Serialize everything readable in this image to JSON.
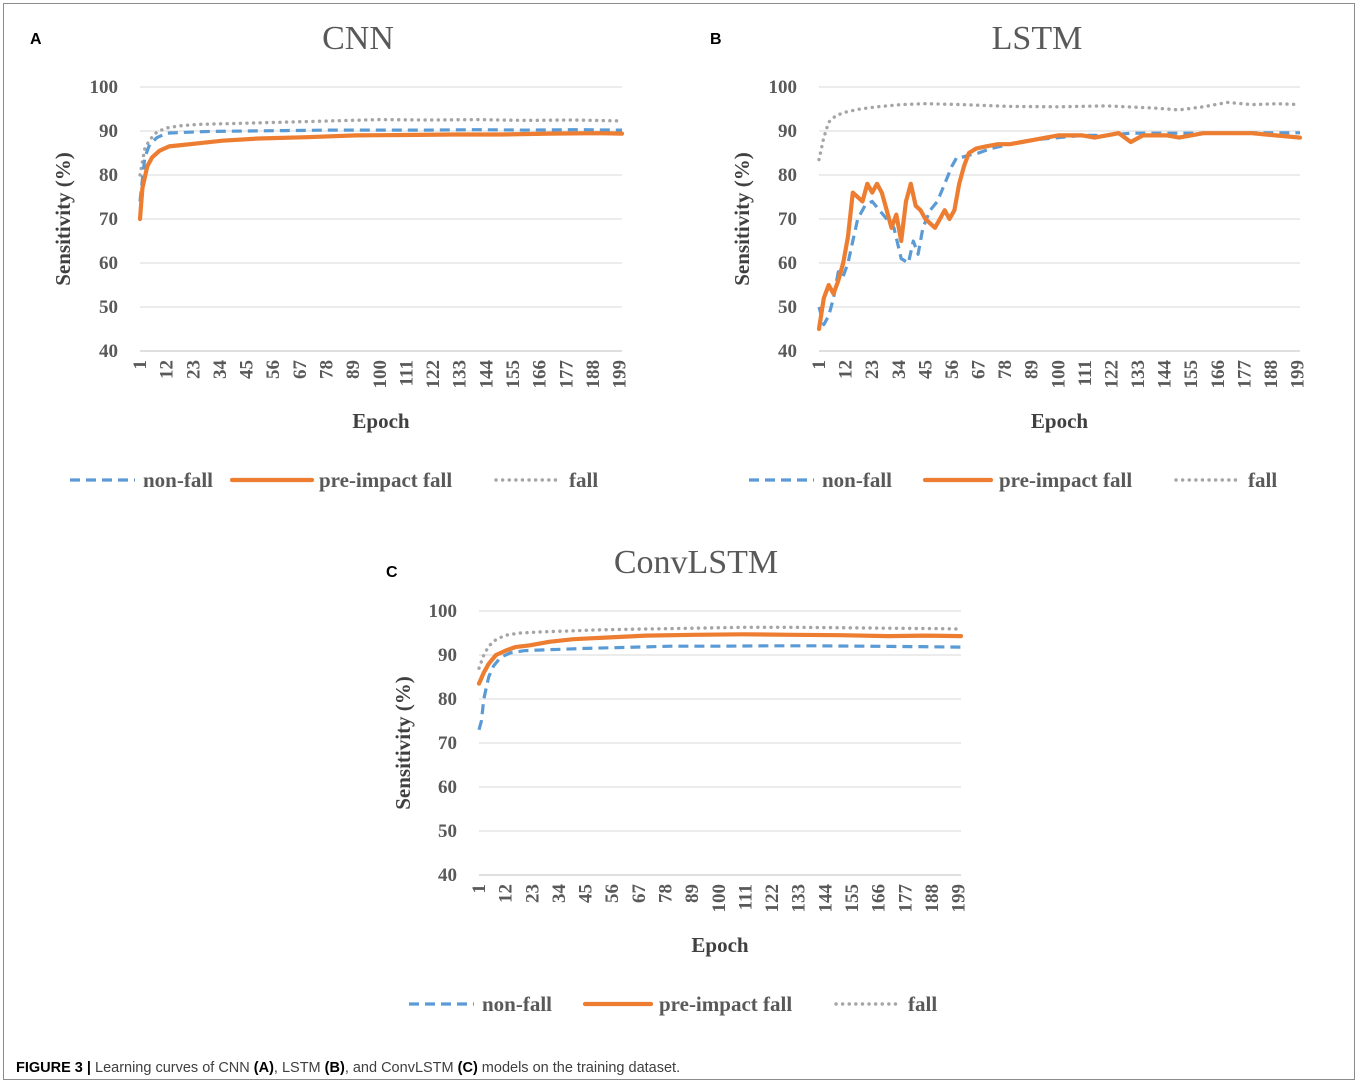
{
  "figure": {
    "caption_label": "FIGURE 3 |",
    "caption_parts": [
      "Learning curves of CNN ",
      "(A)",
      ", LSTM ",
      "(B)",
      ", and ConvLSTM ",
      "(C)",
      " models on the training dataset."
    ]
  },
  "colors": {
    "non_fall": "#5b9bd5",
    "pre_impact_fall": "#ed7d31",
    "fall": "#a5a5a5"
  },
  "chart_data": [
    {
      "panel": "A",
      "type": "line",
      "title": "CNN",
      "xlabel": "Epoch",
      "ylabel": "Sensitivity (%)",
      "ylim": [
        40,
        100
      ],
      "yticks": [
        100,
        90,
        80,
        70,
        60,
        50,
        40
      ],
      "xlim": [
        1,
        200
      ],
      "xticks": [
        1,
        12,
        23,
        34,
        45,
        56,
        67,
        78,
        89,
        100,
        111,
        122,
        133,
        144,
        155,
        166,
        177,
        188,
        199
      ],
      "grid": true,
      "legend": "bottom",
      "series": [
        {
          "name": "non-fall",
          "style": "dashed",
          "x": [
            1,
            3,
            5,
            8,
            12,
            20,
            30,
            45,
            60,
            80,
            100,
            120,
            140,
            160,
            180,
            200
          ],
          "y": [
            74,
            84,
            87,
            88.5,
            89.5,
            89.7,
            89.9,
            90,
            90.1,
            90.2,
            90.2,
            90.2,
            90.3,
            90.2,
            90.3,
            90.2
          ]
        },
        {
          "name": "pre-impact fall",
          "style": "solid",
          "x": [
            1,
            2,
            4,
            6,
            9,
            13,
            18,
            25,
            35,
            50,
            70,
            90,
            110,
            130,
            150,
            170,
            190,
            200
          ],
          "y": [
            70,
            77,
            82,
            84,
            85.5,
            86.5,
            86.8,
            87.2,
            87.8,
            88.3,
            88.6,
            89,
            89.1,
            89.2,
            89.2,
            89.4,
            89.5,
            89.4
          ]
        },
        {
          "name": "fall",
          "style": "dotted",
          "x": [
            1,
            3,
            5,
            8,
            12,
            18,
            25,
            40,
            60,
            80,
            100,
            120,
            140,
            160,
            180,
            200
          ],
          "y": [
            80,
            86,
            88,
            89.8,
            90.7,
            91.2,
            91.5,
            91.7,
            92,
            92.3,
            92.6,
            92.5,
            92.6,
            92.4,
            92.5,
            92.3
          ]
        }
      ]
    },
    {
      "panel": "B",
      "type": "line",
      "title": "LSTM",
      "xlabel": "Epoch",
      "ylabel": "Sensitivity (%)",
      "ylim": [
        40,
        100
      ],
      "yticks": [
        100,
        90,
        80,
        70,
        60,
        50,
        40
      ],
      "xlim": [
        1,
        200
      ],
      "xticks": [
        1,
        12,
        23,
        34,
        45,
        56,
        67,
        78,
        89,
        100,
        111,
        122,
        133,
        144,
        155,
        166,
        177,
        188,
        199
      ],
      "grid": true,
      "legend": "bottom",
      "series": [
        {
          "name": "non-fall",
          "style": "dashed",
          "x": [
            1,
            3,
            5,
            7,
            9,
            11,
            13,
            15,
            17,
            20,
            23,
            26,
            29,
            32,
            35,
            38,
            40,
            42,
            44,
            47,
            50,
            53,
            56,
            58,
            60,
            63,
            67,
            72,
            80,
            90,
            100,
            110,
            120,
            130,
            140,
            150,
            160,
            170,
            180,
            190,
            200
          ],
          "y": [
            50,
            46,
            48,
            52,
            58,
            57,
            60,
            65,
            70,
            73,
            74,
            72,
            70,
            68,
            61,
            60,
            65,
            62,
            68,
            72,
            74,
            78,
            82,
            84,
            84,
            84.5,
            85,
            86,
            87,
            88,
            88.5,
            89,
            89,
            89.5,
            89.5,
            89.5,
            89.5,
            89.5,
            89.6,
            89.6,
            89.6
          ]
        },
        {
          "name": "pre-impact fall",
          "style": "solid",
          "x": [
            1,
            3,
            5,
            7,
            9,
            11,
            13,
            15,
            17,
            19,
            21,
            23,
            25,
            27,
            29,
            31,
            33,
            35,
            37,
            39,
            41,
            43,
            45,
            47,
            49,
            51,
            53,
            55,
            57,
            59,
            61,
            63,
            66,
            70,
            75,
            80,
            85,
            90,
            95,
            100,
            105,
            110,
            115,
            120,
            125,
            130,
            135,
            140,
            145,
            150,
            160,
            170,
            180,
            190,
            200
          ],
          "y": [
            45,
            52,
            55,
            53,
            56,
            60,
            66,
            76,
            75,
            74,
            78,
            76,
            78,
            76,
            72,
            68,
            71,
            65,
            74,
            78,
            73,
            72,
            70,
            69,
            68,
            70,
            72,
            70,
            72,
            78,
            82,
            85,
            86,
            86.5,
            87,
            87,
            87.5,
            88,
            88.5,
            89,
            89,
            89,
            88.5,
            89,
            89.5,
            87.5,
            89,
            89,
            89,
            88.5,
            89.5,
            89.5,
            89.5,
            89,
            88.5
          ]
        },
        {
          "name": "fall",
          "style": "dotted",
          "x": [
            1,
            3,
            5,
            8,
            12,
            18,
            25,
            35,
            45,
            60,
            80,
            100,
            120,
            140,
            150,
            160,
            170,
            180,
            190,
            200
          ],
          "y": [
            83.5,
            88.5,
            92,
            93.5,
            94.3,
            95,
            95.5,
            96,
            96.2,
            96,
            95.6,
            95.5,
            95.7,
            95.2,
            94.8,
            95.5,
            96.5,
            96,
            96.2,
            96
          ]
        }
      ]
    },
    {
      "panel": "C",
      "type": "line",
      "title": "ConvLSTM",
      "xlabel": "Epoch",
      "ylabel": "Sensitivity (%)",
      "ylim": [
        40,
        100
      ],
      "yticks": [
        100,
        90,
        80,
        70,
        60,
        50,
        40
      ],
      "xlim": [
        1,
        200
      ],
      "xticks": [
        1,
        12,
        23,
        34,
        45,
        56,
        67,
        78,
        89,
        100,
        111,
        122,
        133,
        144,
        155,
        166,
        177,
        188,
        199
      ],
      "grid": true,
      "legend": "bottom",
      "series": [
        {
          "name": "non-fall",
          "style": "dashed",
          "x": [
            1,
            2,
            3,
            5,
            7,
            10,
            14,
            20,
            30,
            45,
            60,
            80,
            100,
            120,
            140,
            160,
            180,
            200
          ],
          "y": [
            73,
            75,
            80,
            85,
            87.5,
            89.5,
            90.5,
            91,
            91.2,
            91.5,
            91.7,
            92,
            92,
            92.1,
            92.1,
            92,
            91.9,
            91.8
          ]
        },
        {
          "name": "pre-impact fall",
          "style": "solid",
          "x": [
            1,
            3,
            5,
            8,
            12,
            16,
            22,
            30,
            40,
            55,
            70,
            90,
            110,
            130,
            150,
            170,
            185,
            200
          ],
          "y": [
            83.5,
            86,
            88,
            90,
            91,
            91.8,
            92.2,
            93,
            93.6,
            94,
            94.4,
            94.6,
            94.7,
            94.6,
            94.5,
            94.3,
            94.4,
            94.3
          ]
        },
        {
          "name": "fall",
          "style": "dotted",
          "x": [
            1,
            3,
            5,
            8,
            12,
            18,
            25,
            35,
            50,
            70,
            90,
            110,
            130,
            150,
            170,
            190,
            200
          ],
          "y": [
            87,
            90,
            92,
            93.5,
            94.5,
            95,
            95.2,
            95.4,
            95.7,
            95.9,
            96.1,
            96.3,
            96.3,
            96.2,
            96.1,
            96,
            95.9
          ]
        }
      ]
    }
  ]
}
